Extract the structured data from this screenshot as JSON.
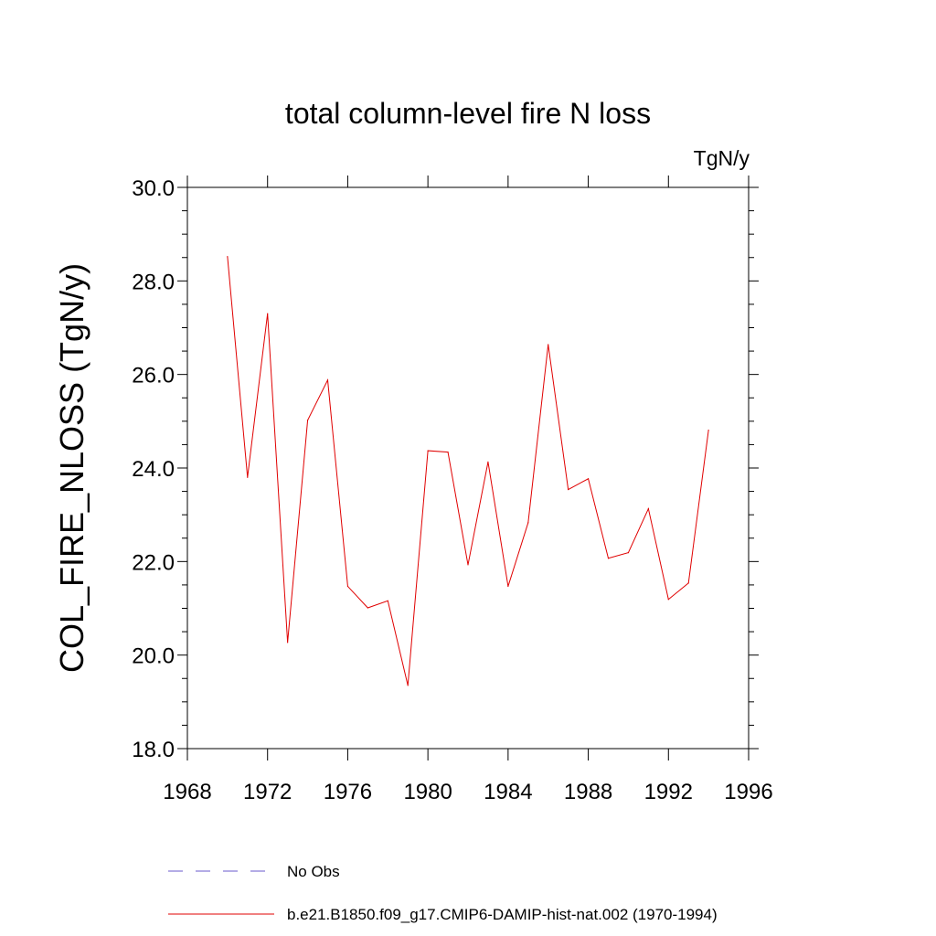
{
  "chart_data": {
    "type": "line",
    "title": "total column-level fire N loss",
    "units": "TgN/y",
    "ylabel": "COL_FIRE_NLOSS  (TgN/y)",
    "xlabel": "",
    "xlim": [
      1968,
      1996
    ],
    "ylim": [
      18.0,
      30.0
    ],
    "x_ticks": [
      "1968",
      "1972",
      "1976",
      "1980",
      "1984",
      "1988",
      "1992",
      "1996"
    ],
    "y_ticks": [
      "18.0",
      "20.0",
      "22.0",
      "24.0",
      "26.0",
      "28.0",
      "30.0"
    ],
    "grid": false,
    "legend_position": "bottom",
    "series": [
      {
        "name": "No Obs",
        "color": "#6a5acd",
        "dash": "dashed",
        "x": [],
        "values": []
      },
      {
        "name": "b.e21.B1850.f09_g17.CMIP6-DAMIP-hist-nat.002 (1970-1994)",
        "color": "#e00000",
        "dash": "solid",
        "x": [
          1970,
          1971,
          1972,
          1973,
          1974,
          1975,
          1976,
          1977,
          1978,
          1979,
          1980,
          1981,
          1982,
          1983,
          1984,
          1985,
          1986,
          1987,
          1988,
          1989,
          1990,
          1991,
          1992,
          1993,
          1994
        ],
        "values": [
          28.52,
          23.8,
          27.3,
          20.27,
          25.02,
          25.88,
          21.47,
          21.01,
          21.16,
          19.35,
          24.37,
          24.34,
          21.93,
          24.13,
          21.47,
          22.83,
          26.64,
          23.54,
          23.77,
          22.07,
          22.19,
          23.13,
          21.19,
          21.54,
          24.81
        ]
      }
    ]
  }
}
